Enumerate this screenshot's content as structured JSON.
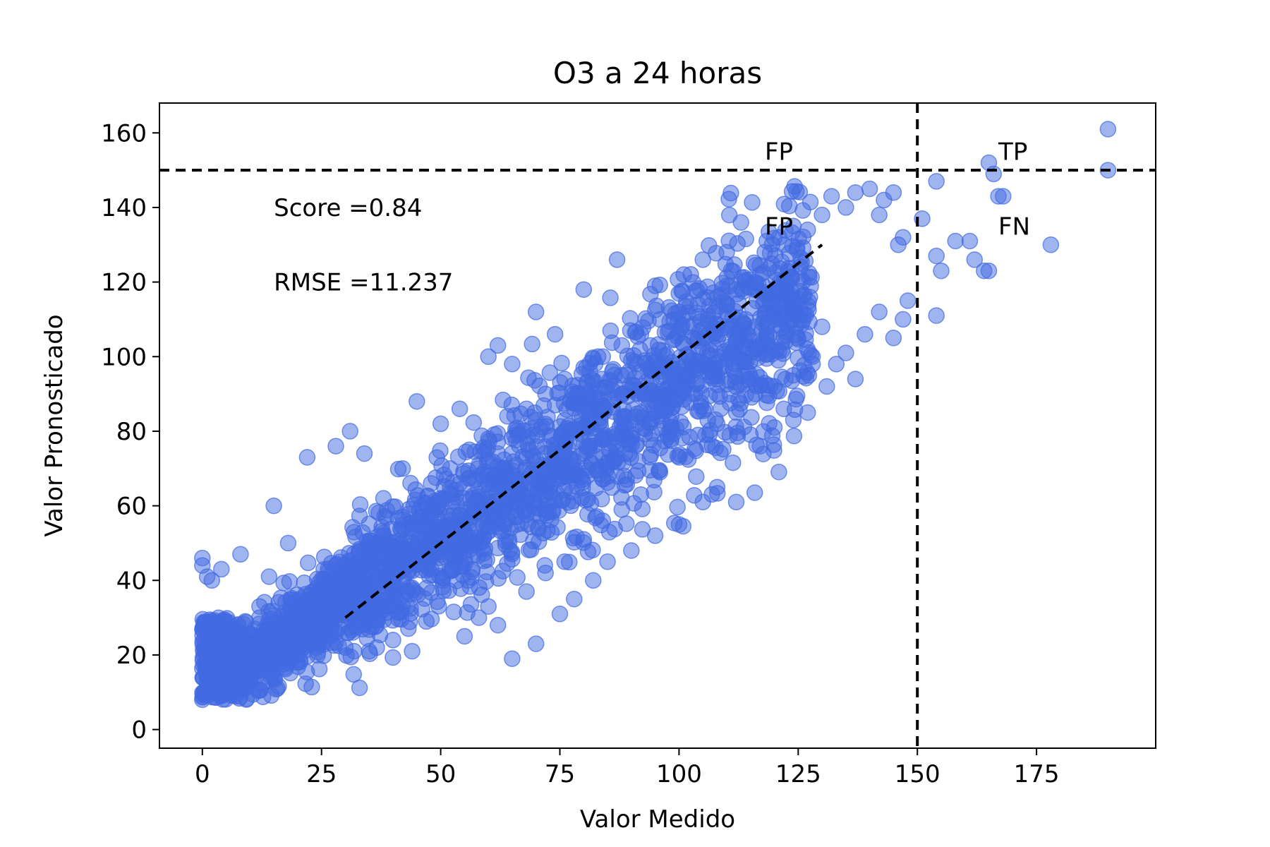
{
  "chart_data": {
    "type": "scatter",
    "title": "O3 a 24 horas",
    "xlabel": "Valor Medido",
    "ylabel": "Valor Pronosticado",
    "xlim": [
      -9,
      200
    ],
    "ylim": [
      -5,
      168
    ],
    "x_ticks": [
      0,
      25,
      50,
      75,
      100,
      125,
      150,
      175
    ],
    "y_ticks": [
      0,
      20,
      40,
      60,
      80,
      100,
      120,
      140,
      160
    ],
    "grid": false,
    "marker_color": "#4169E1",
    "marker_opacity": 0.5,
    "annotations": [
      {
        "text": "Score =0.84",
        "x": 15,
        "y": 140
      },
      {
        "text": "RMSE =11.237",
        "x": 15,
        "y": 120
      }
    ],
    "region_labels": [
      {
        "text": "FP",
        "x": 118,
        "y": 155
      },
      {
        "text": "TP",
        "x": 167,
        "y": 155
      },
      {
        "text": "FP",
        "x": 118,
        "y": 135
      },
      {
        "text": "FN",
        "x": 167,
        "y": 135
      }
    ],
    "threshold_lines": {
      "x": 150,
      "y": 150
    },
    "fit_line": {
      "x": [
        30,
        130
      ],
      "y": [
        30,
        130
      ]
    },
    "series": [
      {
        "points": [
          [
            0,
            8
          ],
          [
            1,
            13
          ],
          [
            1,
            17
          ],
          [
            2,
            11
          ],
          [
            2,
            20
          ],
          [
            3,
            15
          ],
          [
            3,
            24
          ],
          [
            4,
            9
          ],
          [
            4,
            19
          ],
          [
            5,
            14
          ],
          [
            5,
            22
          ],
          [
            6,
            17
          ],
          [
            6,
            27
          ],
          [
            7,
            12
          ],
          [
            7,
            21
          ],
          [
            8,
            16
          ],
          [
            8,
            25
          ],
          [
            9,
            19
          ],
          [
            9,
            29
          ],
          [
            10,
            14
          ],
          [
            10,
            23
          ],
          [
            0,
            44
          ],
          [
            0,
            46
          ],
          [
            1,
            41
          ],
          [
            2,
            40
          ],
          [
            4,
            43
          ],
          [
            8,
            47
          ],
          [
            14,
            41
          ],
          [
            12,
            33
          ],
          [
            18,
            50
          ],
          [
            25,
            27
          ],
          [
            30,
            22
          ],
          [
            35,
            21
          ],
          [
            40,
            24
          ],
          [
            44,
            21
          ],
          [
            47,
            29
          ],
          [
            12,
            30
          ],
          [
            14,
            20
          ],
          [
            16,
            27
          ],
          [
            18,
            24
          ],
          [
            20,
            34
          ],
          [
            22,
            30
          ],
          [
            24,
            38
          ],
          [
            26,
            33
          ],
          [
            28,
            44
          ],
          [
            30,
            41
          ],
          [
            32,
            37
          ],
          [
            34,
            48
          ],
          [
            36,
            45
          ],
          [
            38,
            52
          ],
          [
            40,
            49
          ],
          [
            42,
            57
          ],
          [
            44,
            53
          ],
          [
            46,
            60
          ],
          [
            48,
            66
          ],
          [
            50,
            62
          ],
          [
            52,
            70
          ],
          [
            54,
            66
          ],
          [
            56,
            75
          ],
          [
            58,
            71
          ],
          [
            60,
            78
          ],
          [
            62,
            74
          ],
          [
            64,
            84
          ],
          [
            66,
            80
          ],
          [
            68,
            86
          ],
          [
            70,
            83
          ],
          [
            72,
            90
          ],
          [
            74,
            87
          ],
          [
            76,
            94
          ],
          [
            78,
            90
          ],
          [
            80,
            97
          ],
          [
            82,
            93
          ],
          [
            84,
            100
          ],
          [
            86,
            96
          ],
          [
            88,
            103
          ],
          [
            90,
            99
          ],
          [
            92,
            106
          ],
          [
            94,
            103
          ],
          [
            96,
            110
          ],
          [
            98,
            107
          ],
          [
            100,
            112
          ],
          [
            102,
            108
          ],
          [
            104,
            114
          ],
          [
            106,
            110
          ],
          [
            108,
            116
          ],
          [
            110,
            112
          ],
          [
            112,
            118
          ],
          [
            114,
            110
          ],
          [
            116,
            120
          ],
          [
            118,
            115
          ],
          [
            20,
            18
          ],
          [
            24,
            22
          ],
          [
            28,
            26
          ],
          [
            32,
            28
          ],
          [
            36,
            32
          ],
          [
            40,
            35
          ],
          [
            44,
            38
          ],
          [
            48,
            43
          ],
          [
            52,
            46
          ],
          [
            56,
            50
          ],
          [
            60,
            53
          ],
          [
            64,
            58
          ],
          [
            68,
            62
          ],
          [
            72,
            66
          ],
          [
            76,
            70
          ],
          [
            80,
            74
          ],
          [
            84,
            78
          ],
          [
            88,
            82
          ],
          [
            92,
            85
          ],
          [
            96,
            90
          ],
          [
            100,
            93
          ],
          [
            104,
            97
          ],
          [
            108,
            100
          ],
          [
            112,
            104
          ],
          [
            116,
            108
          ],
          [
            120,
            110
          ],
          [
            124,
            112
          ],
          [
            15,
            60
          ],
          [
            22,
            73
          ],
          [
            28,
            76
          ],
          [
            31,
            80
          ],
          [
            34,
            74
          ],
          [
            38,
            62
          ],
          [
            42,
            70
          ],
          [
            45,
            88
          ],
          [
            50,
            82
          ],
          [
            54,
            86
          ],
          [
            60,
            100
          ],
          [
            62,
            103
          ],
          [
            65,
            98
          ],
          [
            70,
            112
          ],
          [
            74,
            106
          ],
          [
            80,
            118
          ],
          [
            83,
            100
          ],
          [
            87,
            126
          ],
          [
            95,
            119
          ],
          [
            101,
            122
          ],
          [
            105,
            126
          ],
          [
            110,
            128
          ],
          [
            113,
            136
          ],
          [
            118,
            128
          ],
          [
            121,
            132
          ],
          [
            122,
            130
          ],
          [
            124,
            135
          ],
          [
            127,
            134
          ],
          [
            130,
            138
          ],
          [
            132,
            143
          ],
          [
            135,
            140
          ],
          [
            137,
            144
          ],
          [
            140,
            145
          ],
          [
            142,
            138
          ],
          [
            143,
            142
          ],
          [
            145,
            144
          ],
          [
            146,
            130
          ],
          [
            147,
            132
          ],
          [
            142,
            112
          ],
          [
            145,
            105
          ],
          [
            147,
            110
          ],
          [
            148,
            115
          ],
          [
            130,
            108
          ],
          [
            135,
            101
          ],
          [
            137,
            94
          ],
          [
            139,
            106
          ],
          [
            133,
            98
          ],
          [
            128,
            100
          ],
          [
            65,
            19
          ],
          [
            70,
            23
          ],
          [
            75,
            31
          ],
          [
            78,
            35
          ],
          [
            82,
            40
          ],
          [
            85,
            45
          ],
          [
            90,
            48
          ],
          [
            95,
            52
          ],
          [
            100,
            55
          ],
          [
            105,
            61
          ],
          [
            108,
            65
          ],
          [
            112,
            61
          ],
          [
            117,
            76
          ],
          [
            120,
            81
          ],
          [
            124,
            83
          ],
          [
            127,
            85
          ],
          [
            131,
            92
          ],
          [
            55,
            25
          ],
          [
            58,
            30
          ],
          [
            60,
            33
          ],
          [
            62,
            28
          ],
          [
            68,
            37
          ],
          [
            72,
            42
          ],
          [
            76,
            45
          ],
          [
            80,
            51
          ],
          [
            84,
            56
          ],
          [
            88,
            59
          ],
          [
            92,
            63
          ],
          [
            96,
            69
          ],
          [
            100,
            73
          ],
          [
            104,
            79
          ],
          [
            108,
            82
          ],
          [
            112,
            85
          ],
          [
            116,
            90
          ],
          [
            120,
            92
          ],
          [
            124,
            95
          ],
          [
            128,
            98
          ],
          [
            151,
            137
          ],
          [
            154,
            147
          ],
          [
            154,
            127
          ],
          [
            155,
            123
          ],
          [
            154,
            111
          ],
          [
            158,
            131
          ],
          [
            161,
            131
          ],
          [
            162,
            126
          ],
          [
            164,
            123
          ],
          [
            165,
            123
          ],
          [
            165,
            152
          ],
          [
            166,
            149
          ],
          [
            167,
            143
          ],
          [
            168,
            143
          ],
          [
            178,
            130
          ],
          [
            190,
            161
          ],
          [
            190,
            150
          ]
        ]
      }
    ]
  }
}
